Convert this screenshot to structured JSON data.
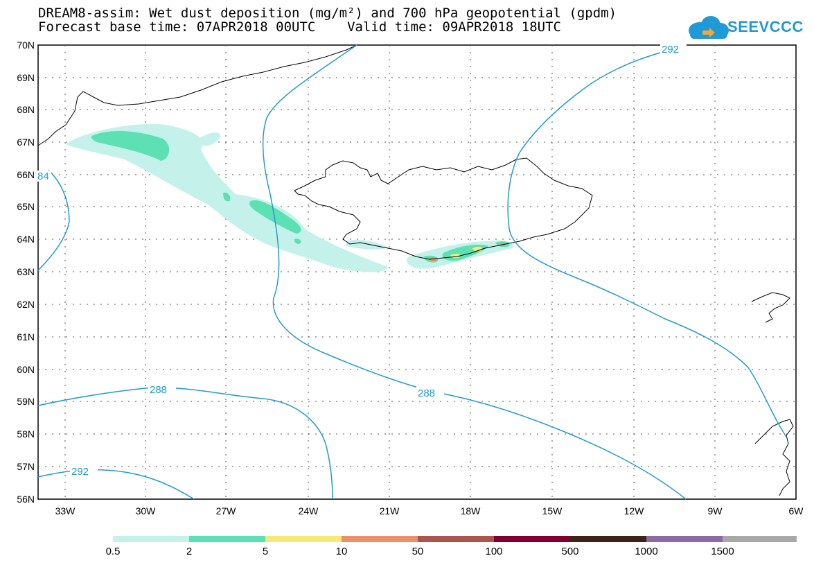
{
  "title": {
    "line1": "DREAM8-assim: Wet dust deposition (mg/m²) and 700 hPa geopotential (gpdm)",
    "line2": "Forecast base time: 07APR2018 00UTC    Valid time: 09APR2018 18UTC"
  },
  "logo": {
    "text": "SEEVCCC",
    "icon": "cloud-icon"
  },
  "axes": {
    "latitudes": [
      "70N",
      "69N",
      "68N",
      "67N",
      "66N",
      "65N",
      "64N",
      "63N",
      "62N",
      "61N",
      "60N",
      "59N",
      "58N",
      "57N",
      "56N"
    ],
    "longitudes": [
      "33W",
      "30W",
      "27W",
      "24W",
      "21W",
      "18W",
      "15W",
      "12W",
      "9W",
      "6W"
    ],
    "lat_range": [
      56,
      70
    ],
    "lon_range": [
      -34.5,
      -6
    ]
  },
  "contours": {
    "labels": [
      "292",
      "84",
      "288",
      "288",
      "292"
    ],
    "color": "#1f9ad6"
  },
  "legend": {
    "labels": [
      "0.5",
      "2",
      "5",
      "10",
      "50",
      "100",
      "500",
      "1000",
      "1500"
    ],
    "colors": [
      "#c4f2ea",
      "#5ce0b4",
      "#f6e87a",
      "#e9906a",
      "#a9564c",
      "#7f0030",
      "#3d2416",
      "#8e6aa2",
      "#a8a8a8"
    ]
  }
}
